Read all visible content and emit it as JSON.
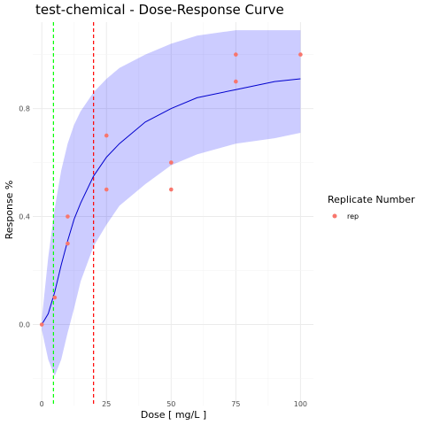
{
  "chart_data": {
    "type": "scatter",
    "title": "test-chemical - Dose-Response Curve",
    "xlabel": "Dose [ mg/L ]",
    "ylabel": "Response %",
    "xlim": [
      -3.5,
      105
    ],
    "ylim": [
      -0.3,
      1.12
    ],
    "x_ticks": [
      0,
      25,
      50,
      75,
      100
    ],
    "x_tick_labels": [
      "0",
      "25",
      "50",
      "75",
      "100"
    ],
    "y_ticks": [
      0.0,
      0.4,
      0.8
    ],
    "y_tick_labels": [
      "0.0",
      "0.4",
      "0.8"
    ],
    "grid": true,
    "legend": {
      "title": "Replicate Number",
      "position": "right",
      "entries": [
        {
          "label": "rep",
          "color": "#f8766d"
        }
      ]
    },
    "points": {
      "name": "rep",
      "color": "#f8766d",
      "x": [
        0,
        5,
        10,
        10,
        25,
        25,
        50,
        50,
        75,
        75,
        100
      ],
      "y": [
        0.0,
        0.1,
        0.3,
        0.4,
        0.5,
        0.7,
        0.5,
        0.6,
        0.9,
        1.0,
        1.0
      ]
    },
    "fit_curve": {
      "color": "#0000cd",
      "x": [
        0,
        2.5,
        5,
        7.5,
        10,
        12.5,
        15,
        20,
        25,
        30,
        40,
        50,
        60,
        75,
        90,
        100
      ],
      "y": [
        0.0,
        0.04,
        0.12,
        0.22,
        0.31,
        0.39,
        0.45,
        0.55,
        0.62,
        0.67,
        0.75,
        0.8,
        0.84,
        0.87,
        0.9,
        0.91
      ]
    },
    "confidence_band": {
      "color": "#0000ff",
      "opacity": 0.2,
      "x": [
        0,
        2.5,
        5,
        7.5,
        10,
        12.5,
        15,
        20,
        25,
        30,
        40,
        50,
        60,
        75,
        90,
        100
      ],
      "lower": [
        -0.02,
        -0.13,
        -0.19,
        -0.13,
        -0.03,
        0.06,
        0.16,
        0.29,
        0.37,
        0.44,
        0.52,
        0.59,
        0.63,
        0.67,
        0.69,
        0.71
      ],
      "upper": [
        0.02,
        0.25,
        0.43,
        0.57,
        0.67,
        0.74,
        0.79,
        0.86,
        0.91,
        0.95,
        1.0,
        1.04,
        1.07,
        1.09,
        1.09,
        1.09
      ]
    },
    "vlines": [
      {
        "x": 4.5,
        "color": "#00ff00",
        "style": "dashed"
      },
      {
        "x": 20,
        "color": "#ff0000",
        "style": "dashed"
      }
    ]
  }
}
